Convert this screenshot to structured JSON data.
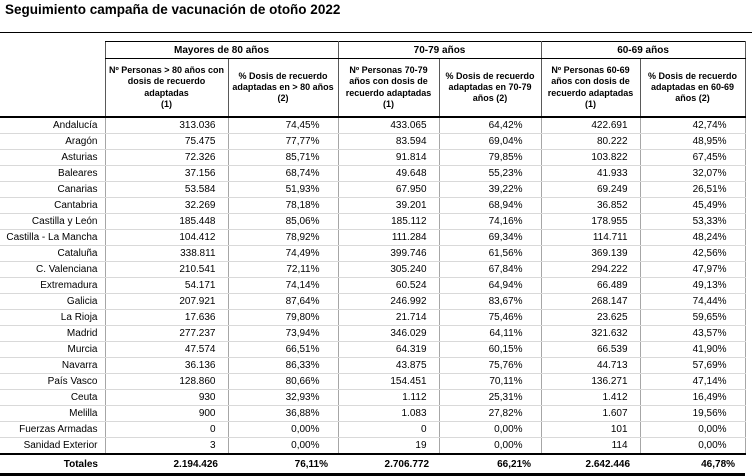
{
  "title": "Seguimiento campaña de vacunación de otoño 2022",
  "table": {
    "groups": [
      {
        "label": "Mayores de 80 años"
      },
      {
        "label": "70-79 años"
      },
      {
        "label": "60-69 años"
      }
    ],
    "columns": [
      "Nº Personas > 80 años con\ndosis de recuerdo\nadaptadas\n(1)",
      "% Dosis de recuerdo\nadaptadas en > 80 años\n(2)",
      "Nº Personas 70-79\naños con dosis de\nrecuerdo adaptadas\n(1)",
      "% Dosis de recuerdo\nadaptadas en 70-79\naños (2)",
      "Nº Personas 60-69\naños con dosis de\nrecuerdo adaptadas\n(1)",
      "% Dosis de recuerdo\nadaptadas en 60-69\naños (2)"
    ],
    "rows": [
      {
        "region": "Andalucía",
        "values": [
          "313.036",
          "74,45%",
          "433.065",
          "64,42%",
          "422.691",
          "42,74%"
        ]
      },
      {
        "region": "Aragón",
        "values": [
          "75.475",
          "77,77%",
          "83.594",
          "69,04%",
          "80.222",
          "48,95%"
        ]
      },
      {
        "region": "Asturias",
        "values": [
          "72.326",
          "85,71%",
          "91.814",
          "79,85%",
          "103.822",
          "67,45%"
        ]
      },
      {
        "region": "Baleares",
        "values": [
          "37.156",
          "68,74%",
          "49.648",
          "55,23%",
          "41.933",
          "32,07%"
        ]
      },
      {
        "region": "Canarias",
        "values": [
          "53.584",
          "51,93%",
          "67.950",
          "39,22%",
          "69.249",
          "26,51%"
        ]
      },
      {
        "region": "Cantabria",
        "values": [
          "32.269",
          "78,18%",
          "39.201",
          "68,94%",
          "36.852",
          "45,49%"
        ]
      },
      {
        "region": "Castilla y León",
        "values": [
          "185.448",
          "85,06%",
          "185.112",
          "74,16%",
          "178.955",
          "53,33%"
        ]
      },
      {
        "region": "Castilla - La Mancha",
        "values": [
          "104.412",
          "78,92%",
          "111.284",
          "69,34%",
          "114.711",
          "48,24%"
        ]
      },
      {
        "region": "Cataluña",
        "values": [
          "338.811",
          "74,49%",
          "399.746",
          "61,56%",
          "369.139",
          "42,56%"
        ]
      },
      {
        "region": "C. Valenciana",
        "values": [
          "210.541",
          "72,11%",
          "305.240",
          "67,84%",
          "294.222",
          "47,97%"
        ]
      },
      {
        "region": "Extremadura",
        "values": [
          "54.171",
          "74,14%",
          "60.524",
          "64,94%",
          "66.489",
          "49,13%"
        ]
      },
      {
        "region": "Galicia",
        "values": [
          "207.921",
          "87,64%",
          "246.992",
          "83,67%",
          "268.147",
          "74,44%"
        ]
      },
      {
        "region": "La Rioja",
        "values": [
          "17.636",
          "79,80%",
          "21.714",
          "75,46%",
          "23.625",
          "59,65%"
        ]
      },
      {
        "region": "Madrid",
        "values": [
          "277.237",
          "73,94%",
          "346.029",
          "64,11%",
          "321.632",
          "43,57%"
        ]
      },
      {
        "region": "Murcia",
        "values": [
          "47.574",
          "66,51%",
          "64.319",
          "60,15%",
          "66.539",
          "41,90%"
        ]
      },
      {
        "region": "Navarra",
        "values": [
          "36.136",
          "86,33%",
          "43.875",
          "75,76%",
          "44.713",
          "57,69%"
        ]
      },
      {
        "region": "País Vasco",
        "values": [
          "128.860",
          "80,66%",
          "154.451",
          "70,11%",
          "136.271",
          "47,14%"
        ]
      },
      {
        "region": "Ceuta",
        "values": [
          "930",
          "32,93%",
          "1.112",
          "25,31%",
          "1.412",
          "16,49%"
        ]
      },
      {
        "region": "Melilla",
        "values": [
          "900",
          "36,88%",
          "1.083",
          "27,82%",
          "1.607",
          "19,56%"
        ]
      },
      {
        "region": "Fuerzas Armadas",
        "values": [
          "0",
          "0,00%",
          "0",
          "0,00%",
          "101",
          "0,00%"
        ]
      },
      {
        "region": "Sanidad Exterior",
        "values": [
          "3",
          "0,00%",
          "19",
          "0,00%",
          "114",
          "0,00%"
        ]
      }
    ],
    "totals": {
      "region": "Totales",
      "values": [
        "2.194.426",
        "76,11%",
        "2.706.772",
        "66,21%",
        "2.642.446",
        "46,78%"
      ]
    }
  }
}
